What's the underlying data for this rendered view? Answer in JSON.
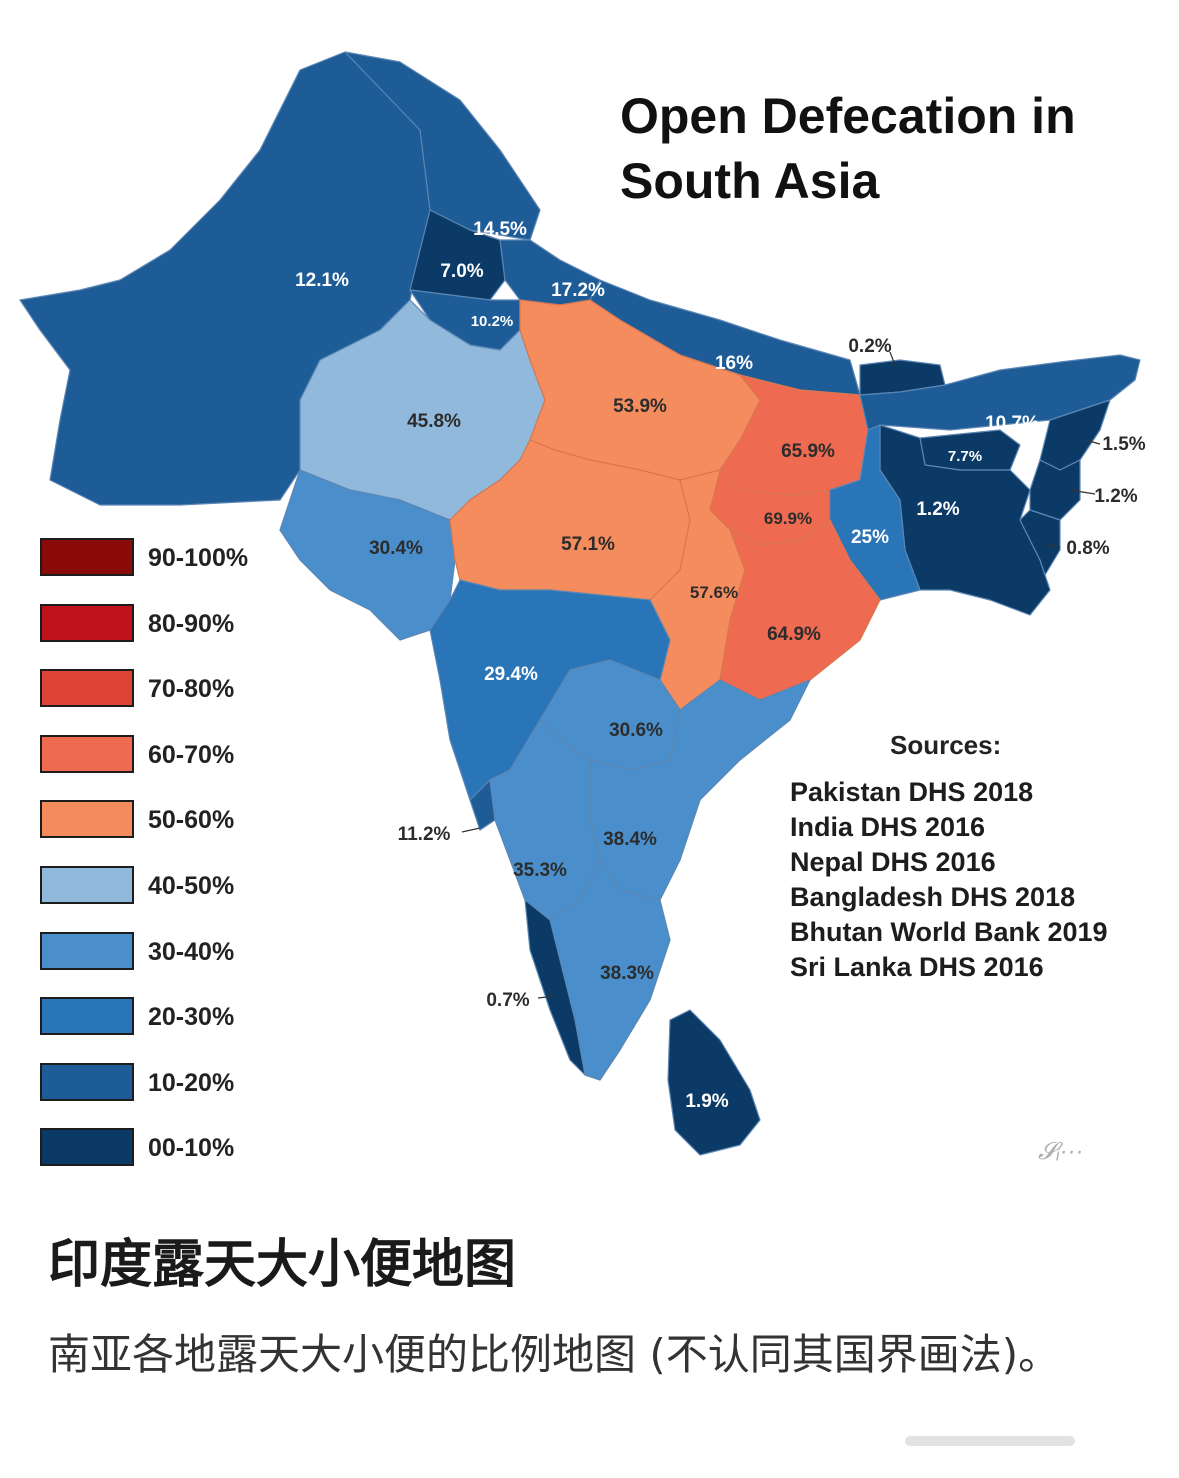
{
  "map": {
    "title_line1": "Open Defecation in",
    "title_line2": "South Asia",
    "regions": [
      {
        "name": "Pakistan (west)",
        "value": "12.1%",
        "color": "#1d5c97"
      },
      {
        "name": "Kashmir/Ladakh",
        "value": "14.5%",
        "color": "#1d5c97"
      },
      {
        "name": "Jammu",
        "value": "7.0%",
        "color": "#0b3a67"
      },
      {
        "name": "Punjab",
        "value": "10.2%",
        "color": "#1d5c97"
      },
      {
        "name": "Uttarakhand",
        "value": "17.2%",
        "color": "#1d5c97"
      },
      {
        "name": "Nepal",
        "value": "16%",
        "color": "#1d5c97"
      },
      {
        "name": "Bhutan",
        "value": "0.2%",
        "color": "#0b3a67"
      },
      {
        "name": "Rajasthan",
        "value": "45.8%",
        "color": "#90b9db"
      },
      {
        "name": "Uttar Pradesh",
        "value": "53.9%",
        "color": "#f58c5e"
      },
      {
        "name": "Bihar",
        "value": "65.9%",
        "color": "#ee6a50"
      },
      {
        "name": "Northeast",
        "value": "10.7%",
        "color": "#1d5c97"
      },
      {
        "name": "Meghalaya",
        "value": "7.7%",
        "color": "#0b3a67"
      },
      {
        "name": "Bangladesh",
        "value": "1.2%",
        "color": "#0b3a67"
      },
      {
        "name": "Nagaland",
        "value": "1.5%",
        "color": "#0b3a67"
      },
      {
        "name": "Manipur",
        "value": "1.2%",
        "color": "#0b3a67"
      },
      {
        "name": "Mizoram",
        "value": "0.8%",
        "color": "#0b3a67"
      },
      {
        "name": "Jharkhand",
        "value": "69.9%",
        "color": "#ee6a50"
      },
      {
        "name": "West Bengal",
        "value": "25%",
        "color": "#2a74b8"
      },
      {
        "name": "Gujarat",
        "value": "30.4%",
        "color": "#4a8fcb"
      },
      {
        "name": "Madhya Pradesh",
        "value": "57.1%",
        "color": "#f58c5e"
      },
      {
        "name": "Chhattisgarh",
        "value": "57.6%",
        "color": "#f58c5e"
      },
      {
        "name": "Odisha",
        "value": "64.9%",
        "color": "#ee6a50"
      },
      {
        "name": "Maharashtra",
        "value": "29.4%",
        "color": "#2a74b8"
      },
      {
        "name": "Telangana",
        "value": "30.6%",
        "color": "#4a8fcb"
      },
      {
        "name": "Goa",
        "value": "11.2%",
        "color": "#1d5c97"
      },
      {
        "name": "Andhra Pradesh",
        "value": "38.4%",
        "color": "#4a8fcb"
      },
      {
        "name": "Karnataka",
        "value": "35.3%",
        "color": "#4a8fcb"
      },
      {
        "name": "Tamil Nadu",
        "value": "38.3%",
        "color": "#4a8fcb"
      },
      {
        "name": "Kerala",
        "value": "0.7%",
        "color": "#0b3a67"
      },
      {
        "name": "Sri Lanka",
        "value": "1.9%",
        "color": "#0b3a67"
      }
    ]
  },
  "legend": [
    {
      "label": "90-100%",
      "color": "#8b0a0a"
    },
    {
      "label": "80-90%",
      "color": "#c0121b"
    },
    {
      "label": "70-80%",
      "color": "#dd4436"
    },
    {
      "label": "60-70%",
      "color": "#ee6a50"
    },
    {
      "label": "50-60%",
      "color": "#f58c5e"
    },
    {
      "label": "40-50%",
      "color": "#90b9db"
    },
    {
      "label": "30-40%",
      "color": "#4a8fcb"
    },
    {
      "label": "20-30%",
      "color": "#2a74b8"
    },
    {
      "label": "10-20%",
      "color": "#1d5c97"
    },
    {
      "label": "00-10%",
      "color": "#0b3a67"
    }
  ],
  "sources": {
    "heading": "Sources:",
    "items": [
      "Pakistan DHS 2018",
      "India DHS 2016",
      "Nepal DHS 2016",
      "Bangladesh DHS 2018",
      "Bhutan World Bank 2019",
      "Sri Lanka DHS 2016"
    ]
  },
  "caption": {
    "title": "印度露天大小便地图",
    "description": "南亚各地露天大小便的比例地图 (不认同其国界画法)。"
  }
}
